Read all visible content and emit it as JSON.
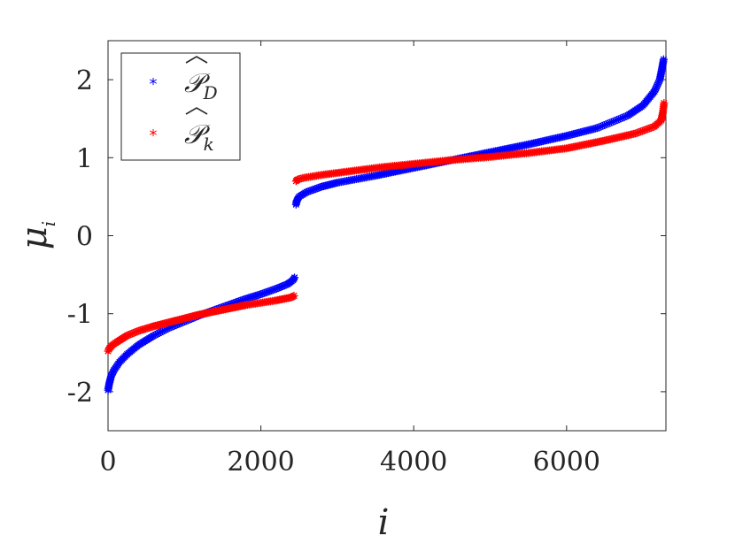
{
  "chart_data": {
    "type": "scatter",
    "xlabel": "i",
    "ylabel": "μ",
    "ylabel_sub": "i",
    "xlim": [
      0,
      7300
    ],
    "ylim": [
      -2.5,
      2.5
    ],
    "xticks": [
      0,
      2000,
      4000,
      6000
    ],
    "xtick_labels": [
      "0",
      "2000",
      "4000",
      "6000"
    ],
    "yticks": [
      -2,
      -1,
      0,
      1,
      2
    ],
    "ytick_labels": [
      "-2",
      "-1",
      "0",
      "1",
      "2"
    ],
    "grid": false,
    "legend_position": "top-left",
    "marker": "*",
    "series": [
      {
        "name": "𝒫",
        "name_sub": "D",
        "color": "#0000ff",
        "points": [
          [
            0,
            -1.98
          ],
          [
            15,
            -1.9
          ],
          [
            40,
            -1.8
          ],
          [
            80,
            -1.72
          ],
          [
            150,
            -1.62
          ],
          [
            250,
            -1.52
          ],
          [
            400,
            -1.4
          ],
          [
            600,
            -1.28
          ],
          [
            800,
            -1.18
          ],
          [
            1000,
            -1.1
          ],
          [
            1200,
            -1.02
          ],
          [
            1400,
            -0.95
          ],
          [
            1600,
            -0.88
          ],
          [
            1800,
            -0.81
          ],
          [
            2000,
            -0.75
          ],
          [
            2200,
            -0.68
          ],
          [
            2350,
            -0.62
          ],
          [
            2420,
            -0.57
          ],
          [
            2450,
            -0.52
          ],
          [
            2460,
            0.4
          ],
          [
            2470,
            0.45
          ],
          [
            2500,
            0.5
          ],
          [
            2600,
            0.56
          ],
          [
            2800,
            0.63
          ],
          [
            3000,
            0.68
          ],
          [
            3500,
            0.77
          ],
          [
            4000,
            0.87
          ],
          [
            4500,
            0.97
          ],
          [
            5000,
            1.07
          ],
          [
            5500,
            1.17
          ],
          [
            6000,
            1.28
          ],
          [
            6400,
            1.38
          ],
          [
            6800,
            1.54
          ],
          [
            7000,
            1.67
          ],
          [
            7150,
            1.85
          ],
          [
            7220,
            2.0
          ],
          [
            7250,
            2.15
          ],
          [
            7270,
            2.26
          ]
        ]
      },
      {
        "name": "𝒫",
        "name_sub": "k",
        "color": "#ff0000",
        "points": [
          [
            0,
            -1.48
          ],
          [
            20,
            -1.44
          ],
          [
            60,
            -1.4
          ],
          [
            120,
            -1.36
          ],
          [
            250,
            -1.28
          ],
          [
            400,
            -1.22
          ],
          [
            600,
            -1.16
          ],
          [
            800,
            -1.11
          ],
          [
            1000,
            -1.06
          ],
          [
            1200,
            -1.01
          ],
          [
            1400,
            -0.97
          ],
          [
            1600,
            -0.93
          ],
          [
            1800,
            -0.89
          ],
          [
            2000,
            -0.86
          ],
          [
            2200,
            -0.83
          ],
          [
            2400,
            -0.79
          ],
          [
            2450,
            -0.76
          ],
          [
            2460,
            0.7
          ],
          [
            2480,
            0.72
          ],
          [
            2550,
            0.74
          ],
          [
            2800,
            0.78
          ],
          [
            3200,
            0.83
          ],
          [
            3600,
            0.88
          ],
          [
            4000,
            0.92
          ],
          [
            4500,
            0.97
          ],
          [
            5000,
            1.01
          ],
          [
            5500,
            1.06
          ],
          [
            6000,
            1.12
          ],
          [
            6500,
            1.22
          ],
          [
            6900,
            1.31
          ],
          [
            7150,
            1.4
          ],
          [
            7240,
            1.48
          ],
          [
            7260,
            1.58
          ],
          [
            7275,
            1.7
          ]
        ]
      }
    ]
  }
}
